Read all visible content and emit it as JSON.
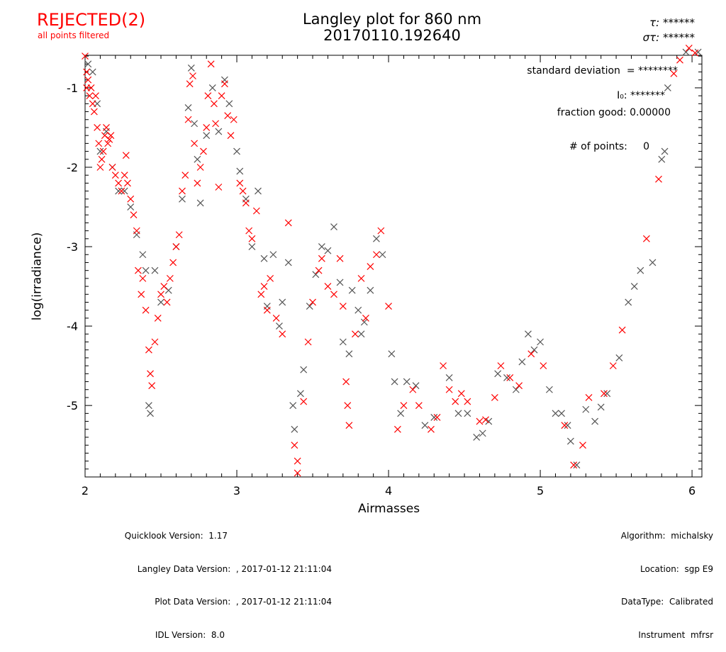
{
  "status": {
    "label": "REJECTED(2)",
    "sub": "all points filtered",
    "color": "#ff0000"
  },
  "header": {
    "title_line1": "Langley plot for 860 nm",
    "title_line2": "20170110.192640",
    "tau_label": "τ:",
    "tau_value": "******",
    "sigma_label": "στ:",
    "sigma_value": "******"
  },
  "stats": {
    "std_dev": "standard deviation  = ********",
    "i0": "I₀: *******",
    "fraction_good": "fraction good: 0.00000",
    "num_points": "# of points:     0"
  },
  "footer_left": [
    "Quicklook Version:  1.17",
    "Langley Data Version:  , 2017-01-12 21:11:04",
    "Plot Data Version:  , 2017-01-12 21:11:04",
    "IDL Version:  8.0"
  ],
  "footer_right": [
    "Algorithm:  michalsky",
    "Location:  sgp E9",
    "DataType:  Calibrated",
    "Instrument  mfrsr"
  ],
  "chart_data": {
    "type": "scatter",
    "title": "Langley plot for 860 nm",
    "xlabel": "Airmasses",
    "ylabel": "log(irradiance)",
    "xlim": [
      2.0,
      6.065
    ],
    "ylim": [
      -5.9,
      -0.59
    ],
    "x_ticks": [
      "2",
      "3",
      "4",
      "5",
      "6"
    ],
    "y_ticks": [
      "-1",
      "-2",
      "-3",
      "-4",
      "-5"
    ],
    "grid": false,
    "colors": {
      "rejected": "#ff0000",
      "other": "#555555"
    },
    "series": [
      {
        "color": "#ff0000",
        "points": [
          [
            2.0,
            -0.6
          ],
          [
            2.01,
            -0.8
          ],
          [
            2.01,
            -1.0
          ],
          [
            2.02,
            -0.9
          ],
          [
            2.03,
            -1.1
          ],
          [
            2.04,
            -1.0
          ],
          [
            2.05,
            -1.2
          ],
          [
            2.06,
            -1.3
          ],
          [
            2.07,
            -1.1
          ],
          [
            2.08,
            -1.5
          ],
          [
            2.09,
            -1.7
          ],
          [
            2.1,
            -2.0
          ],
          [
            2.11,
            -1.9
          ],
          [
            2.12,
            -1.8
          ],
          [
            2.13,
            -1.6
          ],
          [
            2.14,
            -1.5
          ],
          [
            2.15,
            -1.7
          ],
          [
            2.16,
            -1.65
          ],
          [
            2.17,
            -1.6
          ],
          [
            2.18,
            -2.0
          ],
          [
            2.2,
            -2.1
          ],
          [
            2.22,
            -2.2
          ],
          [
            2.24,
            -2.3
          ],
          [
            2.26,
            -2.1
          ],
          [
            2.27,
            -1.85
          ],
          [
            2.28,
            -2.2
          ],
          [
            2.3,
            -2.4
          ],
          [
            2.32,
            -2.6
          ],
          [
            2.34,
            -2.8
          ],
          [
            2.35,
            -3.3
          ],
          [
            2.37,
            -3.6
          ],
          [
            2.38,
            -3.4
          ],
          [
            2.4,
            -3.8
          ],
          [
            2.42,
            -4.3
          ],
          [
            2.43,
            -4.6
          ],
          [
            2.44,
            -4.75
          ],
          [
            2.46,
            -4.2
          ],
          [
            2.48,
            -3.9
          ],
          [
            2.5,
            -3.6
          ],
          [
            2.52,
            -3.5
          ],
          [
            2.54,
            -3.7
          ],
          [
            2.56,
            -3.4
          ],
          [
            2.58,
            -3.2
          ],
          [
            2.6,
            -3.0
          ],
          [
            2.62,
            -2.85
          ],
          [
            2.64,
            -2.3
          ],
          [
            2.66,
            -2.1
          ],
          [
            2.68,
            -1.4
          ],
          [
            2.69,
            -0.95
          ],
          [
            2.71,
            -0.85
          ],
          [
            2.72,
            -1.7
          ],
          [
            2.74,
            -2.2
          ],
          [
            2.76,
            -2.0
          ],
          [
            2.78,
            -1.8
          ],
          [
            2.8,
            -1.5
          ],
          [
            2.81,
            -1.1
          ],
          [
            2.83,
            -0.7
          ],
          [
            2.85,
            -1.2
          ],
          [
            2.86,
            -1.45
          ],
          [
            2.88,
            -2.25
          ],
          [
            2.9,
            -1.1
          ],
          [
            2.92,
            -0.95
          ],
          [
            2.94,
            -1.35
          ],
          [
            2.96,
            -1.6
          ],
          [
            2.98,
            -1.4
          ],
          [
            3.02,
            -2.2
          ],
          [
            3.04,
            -2.3
          ],
          [
            3.06,
            -2.45
          ],
          [
            3.08,
            -2.8
          ],
          [
            3.1,
            -2.9
          ],
          [
            3.13,
            -2.55
          ],
          [
            3.16,
            -3.6
          ],
          [
            3.18,
            -3.5
          ],
          [
            3.2,
            -3.8
          ],
          [
            3.22,
            -3.4
          ],
          [
            3.26,
            -3.9
          ],
          [
            3.3,
            -4.1
          ],
          [
            3.34,
            -2.7
          ],
          [
            3.38,
            -5.5
          ],
          [
            3.4,
            -5.7
          ],
          [
            3.4,
            -5.85
          ],
          [
            3.44,
            -4.95
          ],
          [
            3.47,
            -4.2
          ],
          [
            3.5,
            -3.7
          ],
          [
            3.54,
            -3.3
          ],
          [
            3.56,
            -3.15
          ],
          [
            3.6,
            -3.5
          ],
          [
            3.64,
            -3.6
          ],
          [
            3.68,
            -3.15
          ],
          [
            3.7,
            -3.75
          ],
          [
            3.72,
            -4.7
          ],
          [
            3.73,
            -5.0
          ],
          [
            3.74,
            -5.25
          ],
          [
            3.78,
            -4.1
          ],
          [
            3.82,
            -3.4
          ],
          [
            3.85,
            -3.9
          ],
          [
            3.88,
            -3.25
          ],
          [
            3.92,
            -3.1
          ],
          [
            3.95,
            -2.8
          ],
          [
            4.0,
            -3.75
          ],
          [
            4.06,
            -5.3
          ],
          [
            4.1,
            -5.0
          ],
          [
            4.16,
            -4.8
          ],
          [
            4.2,
            -5.0
          ],
          [
            4.28,
            -5.3
          ],
          [
            4.32,
            -5.15
          ],
          [
            4.36,
            -4.5
          ],
          [
            4.4,
            -4.8
          ],
          [
            4.44,
            -4.95
          ],
          [
            4.48,
            -4.85
          ],
          [
            4.52,
            -4.95
          ],
          [
            4.6,
            -5.2
          ],
          [
            4.64,
            -5.18
          ],
          [
            4.7,
            -4.9
          ],
          [
            4.74,
            -4.5
          ],
          [
            4.8,
            -4.65
          ],
          [
            4.86,
            -4.75
          ],
          [
            4.94,
            -4.35
          ],
          [
            5.02,
            -4.5
          ],
          [
            5.16,
            -5.25
          ],
          [
            5.22,
            -5.75
          ],
          [
            5.28,
            -5.5
          ],
          [
            5.32,
            -4.9
          ],
          [
            5.42,
            -4.85
          ],
          [
            5.48,
            -4.5
          ],
          [
            5.54,
            -4.05
          ],
          [
            5.7,
            -2.9
          ],
          [
            5.78,
            -2.15
          ],
          [
            5.88,
            -0.82
          ],
          [
            5.92,
            -0.65
          ],
          [
            5.98,
            -0.5
          ],
          [
            6.02,
            -0.56
          ]
        ]
      },
      {
        "color": "#555555",
        "points": [
          [
            2.02,
            -0.7
          ],
          [
            2.05,
            -0.8
          ],
          [
            2.08,
            -1.2
          ],
          [
            2.1,
            -1.8
          ],
          [
            2.14,
            -1.55
          ],
          [
            2.18,
            -2.0
          ],
          [
            2.22,
            -2.3
          ],
          [
            2.26,
            -2.3
          ],
          [
            2.3,
            -2.5
          ],
          [
            2.34,
            -2.85
          ],
          [
            2.38,
            -3.1
          ],
          [
            2.4,
            -3.3
          ],
          [
            2.42,
            -5.0
          ],
          [
            2.43,
            -5.1
          ],
          [
            2.46,
            -3.3
          ],
          [
            2.5,
            -3.7
          ],
          [
            2.55,
            -3.55
          ],
          [
            2.6,
            -3.0
          ],
          [
            2.64,
            -2.4
          ],
          [
            2.68,
            -1.25
          ],
          [
            2.7,
            -0.75
          ],
          [
            2.72,
            -1.45
          ],
          [
            2.74,
            -1.9
          ],
          [
            2.76,
            -2.45
          ],
          [
            2.8,
            -1.6
          ],
          [
            2.84,
            -1.0
          ],
          [
            2.88,
            -1.55
          ],
          [
            2.92,
            -0.9
          ],
          [
            2.95,
            -1.2
          ],
          [
            3.0,
            -1.8
          ],
          [
            3.02,
            -2.05
          ],
          [
            3.06,
            -2.4
          ],
          [
            3.1,
            -3.0
          ],
          [
            3.14,
            -2.3
          ],
          [
            3.18,
            -3.15
          ],
          [
            3.2,
            -3.75
          ],
          [
            3.24,
            -3.1
          ],
          [
            3.28,
            -4.0
          ],
          [
            3.3,
            -3.7
          ],
          [
            3.34,
            -3.2
          ],
          [
            3.37,
            -5.0
          ],
          [
            3.38,
            -5.3
          ],
          [
            3.42,
            -4.85
          ],
          [
            3.44,
            -4.55
          ],
          [
            3.48,
            -3.75
          ],
          [
            3.52,
            -3.35
          ],
          [
            3.56,
            -3.0
          ],
          [
            3.6,
            -3.05
          ],
          [
            3.64,
            -2.75
          ],
          [
            3.68,
            -3.45
          ],
          [
            3.7,
            -4.2
          ],
          [
            3.74,
            -4.35
          ],
          [
            3.76,
            -3.55
          ],
          [
            3.8,
            -3.8
          ],
          [
            3.82,
            -4.1
          ],
          [
            3.84,
            -3.95
          ],
          [
            3.88,
            -3.55
          ],
          [
            3.92,
            -2.9
          ],
          [
            3.96,
            -3.1
          ],
          [
            4.02,
            -4.35
          ],
          [
            4.04,
            -4.7
          ],
          [
            4.08,
            -5.1
          ],
          [
            4.12,
            -4.7
          ],
          [
            4.18,
            -4.75
          ],
          [
            4.24,
            -5.25
          ],
          [
            4.3,
            -5.15
          ],
          [
            4.4,
            -4.65
          ],
          [
            4.46,
            -5.1
          ],
          [
            4.52,
            -5.1
          ],
          [
            4.58,
            -5.4
          ],
          [
            4.62,
            -5.35
          ],
          [
            4.66,
            -5.2
          ],
          [
            4.72,
            -4.6
          ],
          [
            4.78,
            -4.65
          ],
          [
            4.84,
            -4.8
          ],
          [
            4.88,
            -4.45
          ],
          [
            4.92,
            -4.1
          ],
          [
            4.96,
            -4.3
          ],
          [
            5.0,
            -4.2
          ],
          [
            5.06,
            -4.8
          ],
          [
            5.1,
            -5.1
          ],
          [
            5.14,
            -5.1
          ],
          [
            5.18,
            -5.25
          ],
          [
            5.2,
            -5.45
          ],
          [
            5.24,
            -5.75
          ],
          [
            5.3,
            -5.05
          ],
          [
            5.36,
            -5.2
          ],
          [
            5.4,
            -5.02
          ],
          [
            5.44,
            -4.85
          ],
          [
            5.52,
            -4.4
          ],
          [
            5.58,
            -3.7
          ],
          [
            5.62,
            -3.5
          ],
          [
            5.66,
            -3.3
          ],
          [
            5.74,
            -3.2
          ],
          [
            5.8,
            -1.9
          ],
          [
            5.82,
            -1.8
          ],
          [
            5.84,
            -1.0
          ],
          [
            5.96,
            -0.55
          ],
          [
            6.04,
            -0.55
          ]
        ]
      }
    ]
  }
}
